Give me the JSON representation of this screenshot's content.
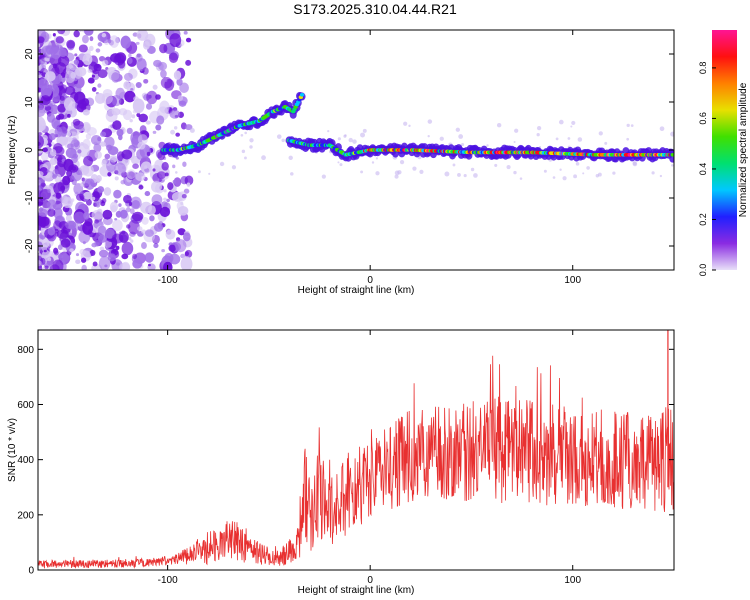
{
  "page": {
    "title": "S173.2025.310.04.44.R21"
  },
  "chart_data": [
    {
      "type": "heatmap",
      "xlabel": "Height of straight line (km)",
      "ylabel": "Frequency (Hz)",
      "xlim": [
        -164,
        150
      ],
      "ylim": [
        -25,
        25
      ],
      "xticks": [
        -100,
        0,
        100
      ],
      "yticks": [
        -20,
        -10,
        0,
        10,
        20
      ],
      "colorbar": {
        "label": "Normalized spectral amplitude",
        "range": [
          0,
          0.95
        ],
        "ticks": [
          0.0,
          0.2,
          0.4,
          0.6,
          0.8
        ],
        "colormap": [
          "#e8e0f8",
          "#8a2be2",
          "#2020ff",
          "#00c8ff",
          "#00e070",
          "#40e000",
          "#e8e000",
          "#ff8000",
          "#ff1010",
          "#ff1493"
        ]
      },
      "ridge": [
        {
          "x": -102,
          "y": 0
        },
        {
          "x": -95,
          "y": 0
        },
        {
          "x": -85,
          "y": 1
        },
        {
          "x": -75,
          "y": 3
        },
        {
          "x": -65,
          "y": 5
        },
        {
          "x": -55,
          "y": 6
        },
        {
          "x": -48,
          "y": 8
        },
        {
          "x": -42,
          "y": 9
        },
        {
          "x": -38,
          "y": 8
        },
        {
          "x": -33,
          "y": 12
        },
        {
          "x": -40,
          "y": 2
        },
        {
          "x": -30,
          "y": 1
        },
        {
          "x": -20,
          "y": 1
        },
        {
          "x": -12,
          "y": -1
        },
        {
          "x": 0,
          "y": 0
        },
        {
          "x": 20,
          "y": 0
        },
        {
          "x": 50,
          "y": -0.5
        },
        {
          "x": 80,
          "y": -0.5
        },
        {
          "x": 110,
          "y": -1
        },
        {
          "x": 150,
          "y": -1
        }
      ],
      "grid": false
    },
    {
      "type": "line",
      "xlabel": "Height of straight line (km)",
      "ylabel": "SNR (10 * v/v)",
      "xlim": [
        -164,
        150
      ],
      "ylim": [
        0,
        870
      ],
      "xticks": [
        -100,
        0,
        100
      ],
      "yticks": [
        0,
        200,
        400,
        600,
        800
      ],
      "color": "#e83030",
      "envelope": [
        {
          "x": -164,
          "base": 20,
          "amp": 15
        },
        {
          "x": -110,
          "base": 25,
          "amp": 15
        },
        {
          "x": -95,
          "base": 40,
          "amp": 20
        },
        {
          "x": -80,
          "base": 80,
          "amp": 60
        },
        {
          "x": -68,
          "base": 110,
          "amp": 80
        },
        {
          "x": -55,
          "base": 60,
          "amp": 40
        },
        {
          "x": -45,
          "base": 40,
          "amp": 30
        },
        {
          "x": -36,
          "base": 90,
          "amp": 60
        },
        {
          "x": -33,
          "base": 260,
          "amp": 200
        },
        {
          "x": -20,
          "base": 230,
          "amp": 150
        },
        {
          "x": 0,
          "base": 330,
          "amp": 150
        },
        {
          "x": 20,
          "base": 420,
          "amp": 170
        },
        {
          "x": 60,
          "base": 440,
          "amp": 200
        },
        {
          "x": 100,
          "base": 410,
          "amp": 180
        },
        {
          "x": 140,
          "base": 390,
          "amp": 180
        },
        {
          "x": 148,
          "base": 400,
          "amp": 200
        }
      ],
      "spike": {
        "x": 147,
        "y": 870
      },
      "grid": false
    }
  ]
}
